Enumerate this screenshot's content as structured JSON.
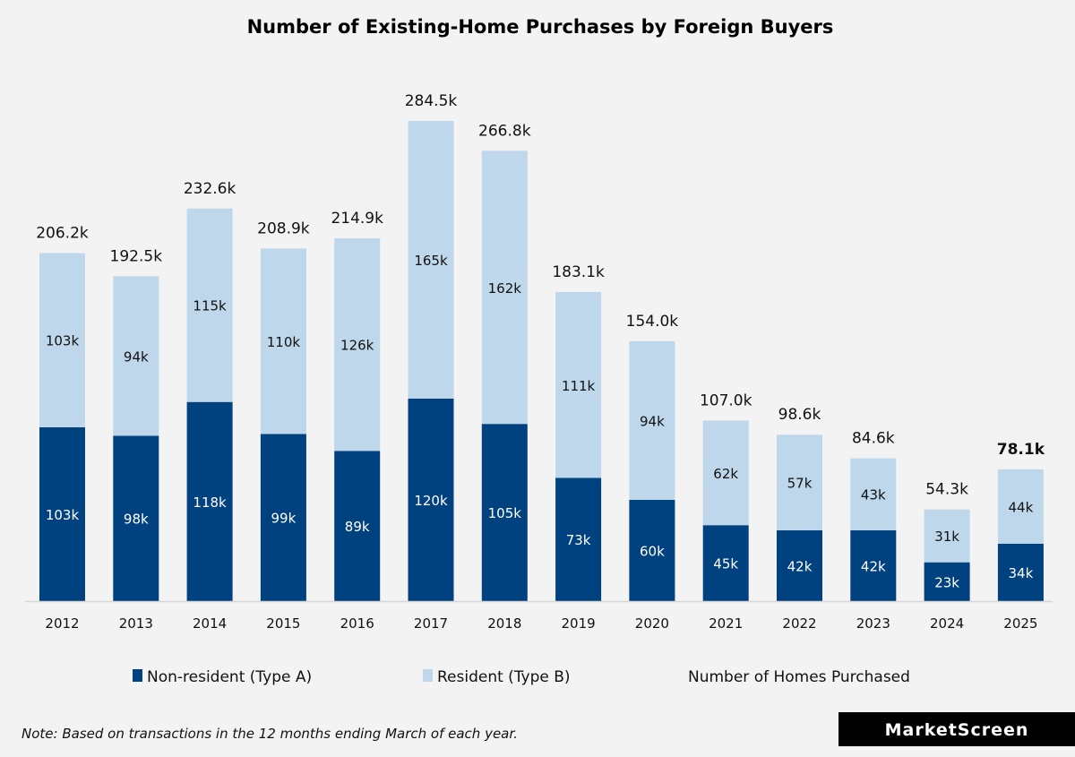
{
  "chart_data": {
    "type": "bar",
    "stacked": true,
    "title": "Number of Existing-Home Purchases by Foreign Buyers",
    "categories": [
      "2012",
      "2013",
      "2014",
      "2015",
      "2016",
      "2017",
      "2018",
      "2019",
      "2020",
      "2021",
      "2022",
      "2023",
      "2024",
      "2025"
    ],
    "series": [
      {
        "name": "Non-resident (Type A)",
        "color": "#00417f",
        "values": [
          103,
          98,
          118,
          99,
          89,
          120,
          105,
          73,
          60,
          45,
          42,
          42,
          23,
          34
        ],
        "labels": [
          "103k",
          "98k",
          "118k",
          "99k",
          "89k",
          "120k",
          "105k",
          "73k",
          "60k",
          "45k",
          "42k",
          "42k",
          "23k",
          "34k"
        ]
      },
      {
        "name": "Resident (Type B)",
        "color": "#bed7eb",
        "values": [
          103,
          94,
          115,
          110,
          126,
          165,
          162,
          111,
          94,
          62,
          57,
          43,
          31,
          44
        ],
        "labels": [
          "103k",
          "94k",
          "115k",
          "110k",
          "126k",
          "165k",
          "162k",
          "111k",
          "94k",
          "62k",
          "57k",
          "43k",
          "31k",
          "44k"
        ]
      }
    ],
    "totals": {
      "name": "Number of Homes Purchased",
      "values": [
        206.2,
        192.5,
        232.6,
        208.9,
        214.9,
        284.5,
        266.8,
        183.1,
        154.0,
        107.0,
        98.6,
        84.6,
        54.3,
        78.1
      ],
      "labels": [
        "206.2k",
        "192.5k",
        "232.6k",
        "208.9k",
        "214.9k",
        "284.5k",
        "266.8k",
        "183.1k",
        "154.0k",
        "107.0k",
        "98.6k",
        "84.6k",
        "54.3k",
        "78.1k"
      ]
    },
    "xlabel": "",
    "ylabel": "",
    "ylim": [
      0,
      284.5
    ],
    "grid": false,
    "legend_placement": "bottom"
  },
  "note": "Note: Based on transactions in the 12 months ending March of each year.",
  "brand": "MarketScreen"
}
